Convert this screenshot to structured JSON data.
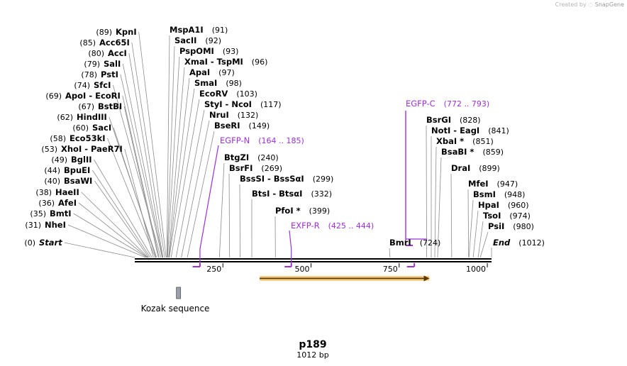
{
  "watermark": {
    "prefix": "Created by",
    "brand": "SnapGene"
  },
  "sequence": {
    "name": "p189",
    "length_label": "1012 bp",
    "length": 1012
  },
  "axis": {
    "ticks": [
      {
        "pos": 250,
        "label": "250"
      },
      {
        "pos": 500,
        "label": "500"
      },
      {
        "pos": 750,
        "label": "750"
      },
      {
        "pos": 1000,
        "label": "1000"
      }
    ]
  },
  "left_sites": [
    {
      "name": "Start",
      "num": "(0)",
      "pos": 0,
      "italic": true
    },
    {
      "name": "NheI",
      "num": "(31)",
      "pos": 31
    },
    {
      "name": "BmtI",
      "num": "(35)",
      "pos": 35
    },
    {
      "name": "AfeI",
      "num": "(36)",
      "pos": 36
    },
    {
      "name": "HaeII",
      "num": "(38)",
      "pos": 38
    },
    {
      "name": "BsaWI",
      "num": "(40)",
      "pos": 40
    },
    {
      "name": "BpuEI",
      "num": "(44)",
      "pos": 44
    },
    {
      "name": "BglII",
      "num": "(49)",
      "pos": 49
    },
    {
      "name": "XhoI  - PaeR7I",
      "num": "(53)",
      "pos": 53
    },
    {
      "name": "Eco53kI",
      "num": "(58)",
      "pos": 58
    },
    {
      "name": "SacI",
      "num": "(60)",
      "pos": 60
    },
    {
      "name": "HindIII",
      "num": "(62)",
      "pos": 62
    },
    {
      "name": "BstBI",
      "num": "(67)",
      "pos": 67
    },
    {
      "name": "ApoI  - EcoRI",
      "num": "(69)",
      "pos": 69
    },
    {
      "name": "SfcI",
      "num": "(74)",
      "pos": 74
    },
    {
      "name": "PstI",
      "num": "(78)",
      "pos": 78
    },
    {
      "name": "SalI",
      "num": "(79)",
      "pos": 79
    },
    {
      "name": "AccI",
      "num": "(80)",
      "pos": 80
    },
    {
      "name": "Acc65I",
      "num": "(85)",
      "pos": 85
    },
    {
      "name": "KpnI",
      "num": "(89)",
      "pos": 89
    }
  ],
  "right_sites": [
    {
      "name": "MspA1I",
      "num": "(91)",
      "pos": 91
    },
    {
      "name": "SacII",
      "num": "(92)",
      "pos": 92
    },
    {
      "name": "PspOMI",
      "num": "(93)",
      "pos": 93
    },
    {
      "name": "XmaI  - TspMI",
      "num": "(96)",
      "pos": 96
    },
    {
      "name": "ApaI",
      "num": "(97)",
      "pos": 97
    },
    {
      "name": "SmaI",
      "num": "(98)",
      "pos": 98
    },
    {
      "name": "EcoRV",
      "num": "(103)",
      "pos": 103
    },
    {
      "name": "StyI  - NcoI",
      "num": "(117)",
      "pos": 117
    },
    {
      "name": "NruI",
      "num": "(132)",
      "pos": 132
    },
    {
      "name": "BseRI",
      "num": "(149)",
      "pos": 149
    },
    {
      "name": "BtgZI",
      "num": "(240)",
      "pos": 240
    },
    {
      "name": "BsrFI",
      "num": "(269)",
      "pos": 269
    },
    {
      "name": "BssSI  - BssSαI",
      "num": "(299)",
      "pos": 299
    },
    {
      "name": "BtsI  - BtsαI",
      "num": "(332)",
      "pos": 332
    },
    {
      "name": "PfoI *",
      "num": "(399)",
      "pos": 399
    },
    {
      "name": "BmrI",
      "num": "(724)",
      "pos": 724
    },
    {
      "name": "BsrGI",
      "num": "(828)",
      "pos": 828
    },
    {
      "name": "NotI  - EagI",
      "num": "(841)",
      "pos": 841
    },
    {
      "name": "XbaI *",
      "num": "(851)",
      "pos": 851
    },
    {
      "name": "BsaBI *",
      "num": "(859)",
      "pos": 859
    },
    {
      "name": "DraI",
      "num": "(899)",
      "pos": 899
    },
    {
      "name": "MfeI",
      "num": "(947)",
      "pos": 947
    },
    {
      "name": "BsmI",
      "num": "(948)",
      "pos": 948
    },
    {
      "name": "HpaI",
      "num": "(960)",
      "pos": 960
    },
    {
      "name": "TsoI",
      "num": "(974)",
      "pos": 974
    },
    {
      "name": "PsiI",
      "num": "(980)",
      "pos": 980
    },
    {
      "name": "End",
      "num": "(1012)",
      "pos": 1012,
      "italic": true
    }
  ],
  "primers": [
    {
      "name": "EGFP-N",
      "range": "(164 .. 185)",
      "start": 164,
      "end": 185,
      "direction": "forward"
    },
    {
      "name": "EXFP-R",
      "range": "(425 .. 444)",
      "start": 425,
      "end": 444,
      "direction": "forward"
    },
    {
      "name": "EGFP-C",
      "range": "(772 .. 793)",
      "start": 772,
      "end": 793,
      "direction": "forward"
    }
  ],
  "features": [
    {
      "name": "orf",
      "start": 354,
      "end": 836,
      "direction": "forward",
      "color": "#f5a623"
    },
    {
      "name": "Kozak sequence",
      "start": 118,
      "end": 129,
      "color": "#9aa0ab"
    }
  ],
  "colors": {
    "primer": "#9b30d9",
    "backbone": "#000000",
    "leader": "#8c8c8c"
  }
}
